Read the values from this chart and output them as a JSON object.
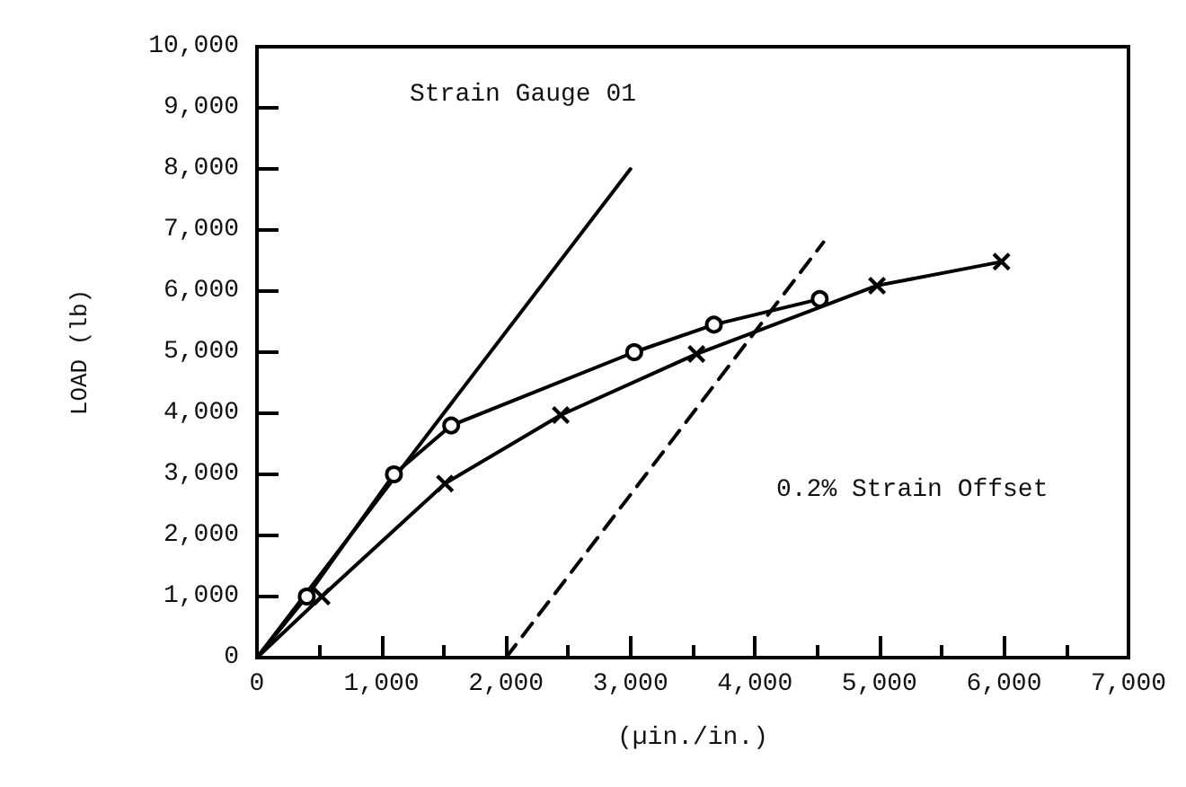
{
  "chart_data": {
    "type": "line",
    "xlabel": "(µin./in.)",
    "ylabel": "LOAD (lb)",
    "annotations": [
      "Strain Gauge 01",
      "0.2% Strain Offset"
    ],
    "xlim": [
      0,
      7000
    ],
    "ylim": [
      0,
      10000
    ],
    "xticks": [
      0,
      {
        "value": 1000,
        "label": "1,000"
      },
      {
        "value": 2000,
        "label": "2,000"
      },
      {
        "value": 3000,
        "label": "3,000"
      },
      {
        "value": 4000,
        "label": "4,000"
      },
      {
        "value": 5000,
        "label": "5,000"
      },
      {
        "value": 6000,
        "label": "6,000"
      },
      {
        "value": 7000,
        "label": "7,000"
      }
    ],
    "yticks": [
      0,
      {
        "value": 1000,
        "label": "1,000"
      },
      {
        "value": 2000,
        "label": "2,000"
      },
      {
        "value": 3000,
        "label": "3,000"
      },
      {
        "value": 4000,
        "label": "4,000"
      },
      {
        "value": 5000,
        "label": "5,000"
      },
      {
        "value": 6000,
        "label": "6,000"
      },
      {
        "value": 7000,
        "label": "7,000"
      },
      {
        "value": 8000,
        "label": "8,000"
      },
      {
        "value": 9000,
        "label": "9,000"
      },
      {
        "value": 10000,
        "label": "10,000"
      }
    ],
    "series": [
      {
        "color": "#000000",
        "marker": "circle",
        "line_style": "solid",
        "x": [
          0,
          400,
          1100,
          1560,
          3030,
          3670,
          4520
        ],
        "values": [
          0,
          1000,
          3000,
          3800,
          5000,
          5450,
          5870
        ]
      },
      {
        "color": "#000000",
        "marker": "cross",
        "line_style": "solid",
        "x": [
          0,
          520,
          1510,
          2440,
          3530,
          4980,
          5980
        ],
        "values": [
          0,
          1000,
          2850,
          3970,
          4970,
          6090,
          6480
        ]
      },
      {
        "color": "#000000",
        "marker": "none",
        "line_style": "solid",
        "x": [
          0,
          3000
        ],
        "values": [
          0,
          8000
        ]
      },
      {
        "color": "#000000",
        "marker": "none",
        "line_style": "dashed",
        "x": [
          2000,
          4550
        ],
        "values": [
          0,
          6800
        ]
      }
    ]
  }
}
